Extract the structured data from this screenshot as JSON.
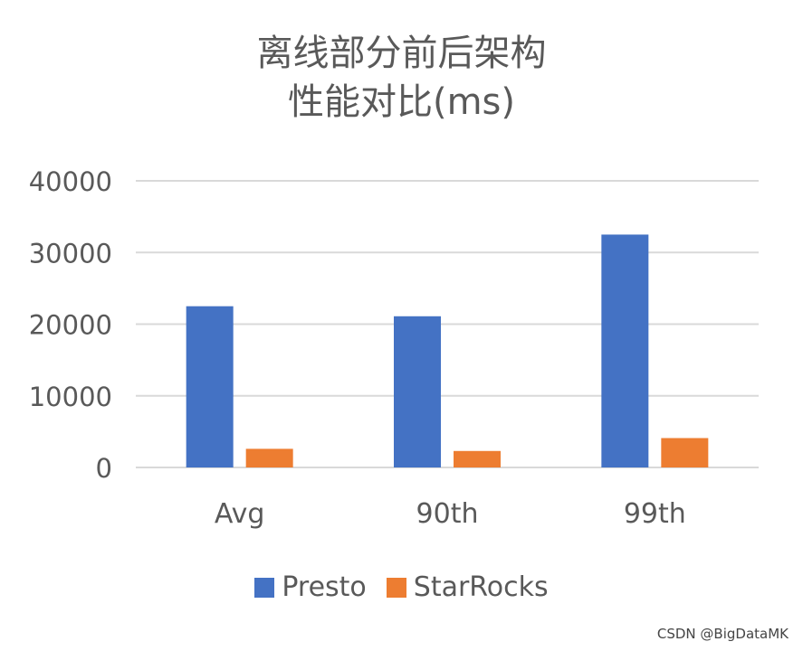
{
  "chart_data": {
    "type": "bar",
    "title_line1": "离线部分前后架构",
    "title_line2": "性能对比(ms)",
    "categories": [
      "Avg",
      "90th",
      "99th"
    ],
    "series": [
      {
        "name": "Presto",
        "color": "#4472C4",
        "values": [
          22500,
          21100,
          32500
        ]
      },
      {
        "name": "StarRocks",
        "color": "#ED7D31",
        "values": [
          2600,
          2300,
          4100
        ]
      }
    ],
    "yticks": [
      "0",
      "10000",
      "20000",
      "30000",
      "40000"
    ],
    "ylim": [
      0,
      40000
    ],
    "grid": true,
    "legend_position": "bottom"
  },
  "watermark": "CSDN @BigDataMK"
}
